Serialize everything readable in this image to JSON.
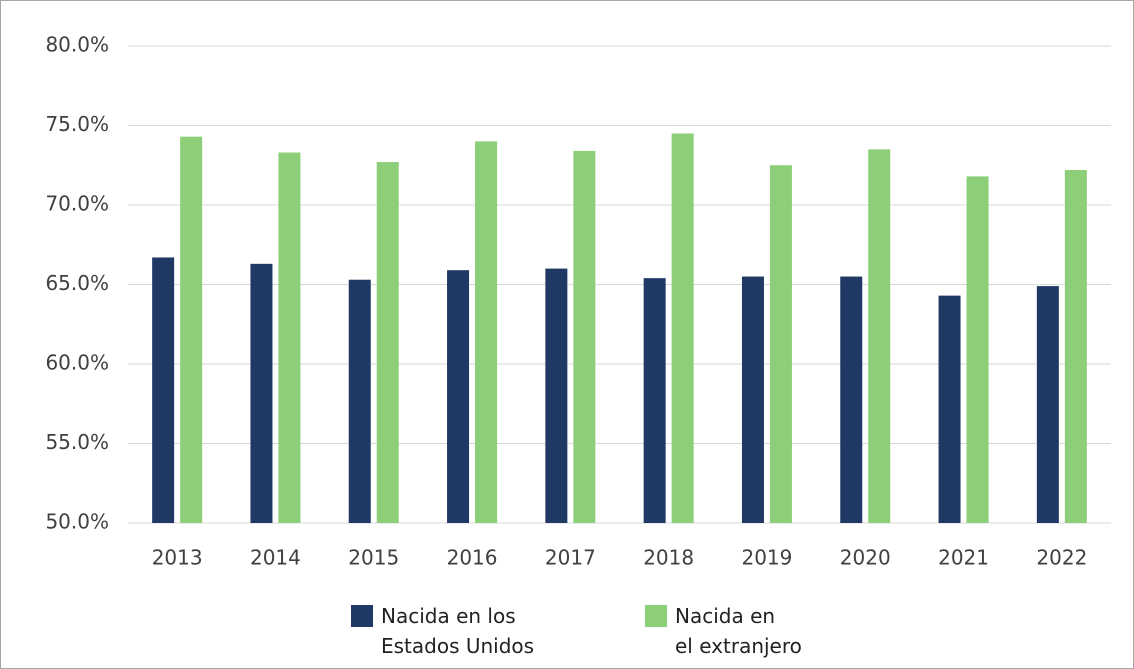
{
  "chart_data": {
    "type": "bar",
    "categories": [
      "2013",
      "2014",
      "2015",
      "2016",
      "2017",
      "2018",
      "2019",
      "2020",
      "2021",
      "2022"
    ],
    "series": [
      {
        "name": "Nacida en los\nEstados Unidos",
        "color": "#1f3864",
        "values": [
          66.7,
          66.3,
          65.3,
          65.9,
          66.0,
          65.4,
          65.5,
          65.5,
          64.3,
          64.9
        ]
      },
      {
        "name": "Nacida en\nel extranjero",
        "color": "#8ccf78",
        "values": [
          74.3,
          73.3,
          72.7,
          74.0,
          73.4,
          74.5,
          72.5,
          73.5,
          71.8,
          72.2
        ]
      }
    ],
    "ylim": [
      50,
      80
    ],
    "yticks": [
      {
        "value": 50,
        "label": "50.0%"
      },
      {
        "value": 55,
        "label": "55.0%"
      },
      {
        "value": 60,
        "label": "60.0%"
      },
      {
        "value": 65,
        "label": "65.0%"
      },
      {
        "value": 70,
        "label": "70.0%"
      },
      {
        "value": 75,
        "label": "75.0%"
      },
      {
        "value": 80,
        "label": "80.0%"
      }
    ],
    "grid": true
  }
}
